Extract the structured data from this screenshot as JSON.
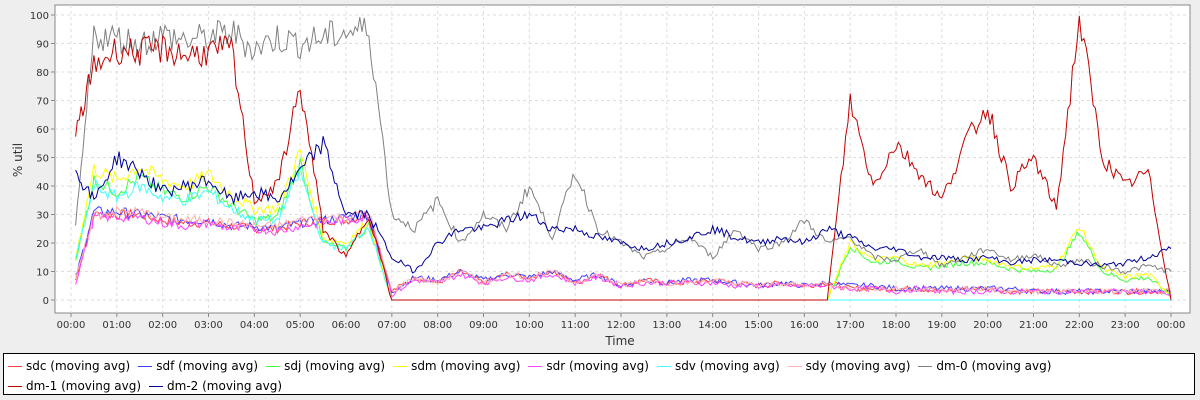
{
  "chart_data": {
    "type": "line",
    "title": "",
    "xlabel": "Time",
    "ylabel": "% util",
    "ylim": [
      -5,
      102
    ],
    "xlim_hours": [
      -0.35,
      24.4
    ],
    "grid": true,
    "legend_placement": "bottom",
    "yticks": [
      "0",
      "10",
      "20",
      "30",
      "40",
      "50",
      "60",
      "70",
      "80",
      "90",
      "100"
    ],
    "xticks": [
      "00:00",
      "01:00",
      "02:00",
      "03:00",
      "04:00",
      "05:00",
      "06:00",
      "07:00",
      "08:00",
      "09:00",
      "10:00",
      "11:00",
      "12:00",
      "13:00",
      "14:00",
      "15:00",
      "16:00",
      "17:00",
      "18:00",
      "19:00",
      "20:00",
      "21:00",
      "22:00",
      "23:00",
      "00:00"
    ],
    "x_hours": [
      0.1,
      0.5,
      1,
      1.5,
      2,
      2.5,
      3,
      3.5,
      4,
      4.5,
      5,
      5.5,
      6,
      6.5,
      7,
      7.5,
      8,
      8.5,
      9,
      9.5,
      10,
      10.5,
      11,
      11.5,
      12,
      12.5,
      13,
      13.5,
      14,
      14.5,
      15,
      15.5,
      16,
      16.5,
      17,
      17.5,
      18,
      18.5,
      19,
      19.5,
      20,
      20.5,
      21,
      21.5,
      22,
      22.5,
      23,
      23.5,
      24
    ],
    "series": [
      {
        "name": "sdc (moving avg)",
        "color": "#ff4040",
        "values": [
          7,
          30,
          30,
          30,
          28,
          27,
          27,
          26,
          25,
          25,
          27,
          28,
          28,
          30,
          3,
          8,
          6,
          10,
          6,
          9,
          8,
          10,
          6,
          9,
          5,
          7,
          6,
          6,
          7,
          6,
          5,
          6,
          5,
          6,
          4,
          4,
          4,
          4,
          3,
          4,
          4,
          3,
          3,
          3,
          3,
          3,
          3,
          3,
          3
        ]
      },
      {
        "name": "sdf (moving avg)",
        "color": "#4040ff",
        "values": [
          8,
          31,
          31,
          30,
          29,
          28,
          28,
          26,
          26,
          25,
          27,
          28,
          29,
          30,
          3,
          8,
          7,
          10,
          7,
          9,
          8,
          10,
          7,
          9,
          5,
          7,
          6,
          7,
          7,
          6,
          5,
          6,
          5,
          6,
          5,
          5,
          4,
          4,
          4,
          4,
          4,
          4,
          3,
          3,
          3,
          3,
          3,
          3,
          3
        ]
      },
      {
        "name": "sdj (moving avg)",
        "color": "#40ff40",
        "values": [
          14,
          42,
          38,
          43,
          38,
          36,
          40,
          33,
          28,
          29,
          48,
          20,
          18,
          26,
          0,
          0,
          0,
          0,
          0,
          0,
          0,
          0,
          0,
          0,
          0,
          0,
          0,
          0,
          0,
          0,
          0,
          0,
          0,
          0,
          19,
          13,
          14,
          11,
          12,
          13,
          13,
          11,
          10,
          11,
          24,
          10,
          7,
          8,
          1
        ]
      },
      {
        "name": "sdm (moving avg)",
        "color": "#ffff00",
        "values": [
          15,
          46,
          42,
          47,
          42,
          40,
          44,
          37,
          32,
          32,
          52,
          22,
          20,
          28,
          0,
          0,
          0,
          0,
          0,
          0,
          0,
          0,
          0,
          0,
          0,
          0,
          0,
          0,
          0,
          0,
          0,
          0,
          0,
          0,
          20,
          14,
          15,
          12,
          13,
          15,
          14,
          12,
          11,
          12,
          26,
          11,
          8,
          9,
          2
        ]
      },
      {
        "name": "sdr (moving avg)",
        "color": "#ff40ff",
        "values": [
          6,
          29,
          29,
          29,
          27,
          26,
          27,
          25,
          25,
          24,
          26,
          27,
          28,
          29,
          2,
          7,
          6,
          9,
          6,
          8,
          7,
          9,
          6,
          8,
          5,
          6,
          6,
          6,
          6,
          5,
          5,
          5,
          5,
          5,
          4,
          4,
          3,
          4,
          3,
          3,
          3,
          3,
          3,
          3,
          3,
          3,
          3,
          3,
          2
        ]
      },
      {
        "name": "sdv (moving avg)",
        "color": "#40ffff",
        "values": [
          14,
          40,
          36,
          40,
          36,
          35,
          38,
          32,
          28,
          28,
          45,
          20,
          18,
          26,
          0,
          0,
          0,
          0,
          0,
          0,
          0,
          0,
          0,
          0,
          0,
          0,
          0,
          0,
          0,
          0,
          0,
          0,
          0,
          0,
          0,
          0,
          0,
          0,
          0,
          0,
          0,
          0,
          0,
          0,
          0,
          0,
          0,
          0,
          0
        ]
      },
      {
        "name": "sdy (moving avg)",
        "color": "#ffafaf",
        "values": [
          7,
          30,
          31,
          31,
          29,
          28,
          28,
          27,
          26,
          26,
          28,
          29,
          29,
          31,
          3,
          8,
          6,
          10,
          6,
          9,
          8,
          10,
          6,
          9,
          5,
          7,
          6,
          6,
          7,
          6,
          5,
          6,
          5,
          6,
          4,
          4,
          4,
          4,
          3,
          4,
          4,
          3,
          3,
          3,
          3,
          3,
          3,
          3,
          3
        ]
      },
      {
        "name": "dm-0 (moving avg)",
        "color": "#808080",
        "values": [
          25,
          93,
          92,
          90,
          93,
          91,
          92,
          94,
          88,
          92,
          90,
          92,
          94,
          95,
          30,
          25,
          35,
          20,
          30,
          25,
          40,
          22,
          45,
          25,
          20,
          15,
          18,
          22,
          15,
          25,
          18,
          20,
          28,
          20,
          22,
          15,
          14,
          18,
          12,
          15,
          18,
          14,
          16,
          12,
          14,
          12,
          10,
          12,
          10
        ]
      },
      {
        "name": "dm-1 (moving avg)",
        "color": "#c00000",
        "values": [
          58,
          82,
          88,
          87,
          88,
          86,
          87,
          88,
          35,
          40,
          75,
          25,
          15,
          30,
          0,
          0,
          0,
          0,
          0,
          0,
          0,
          0,
          0,
          0,
          0,
          0,
          0,
          0,
          0,
          0,
          0,
          0,
          0,
          0,
          70,
          40,
          55,
          45,
          35,
          55,
          68,
          40,
          50,
          32,
          99,
          50,
          40,
          45,
          0
        ]
      },
      {
        "name": "dm-2 (moving avg)",
        "color": "#000099",
        "values": [
          45,
          35,
          50,
          45,
          38,
          40,
          42,
          35,
          38,
          35,
          45,
          55,
          30,
          30,
          15,
          10,
          20,
          25,
          25,
          28,
          30,
          25,
          25,
          22,
          20,
          18,
          20,
          22,
          25,
          22,
          20,
          22,
          20,
          25,
          22,
          18,
          18,
          15,
          15,
          14,
          15,
          13,
          14,
          14,
          13,
          12,
          13,
          15,
          18
        ]
      }
    ]
  }
}
